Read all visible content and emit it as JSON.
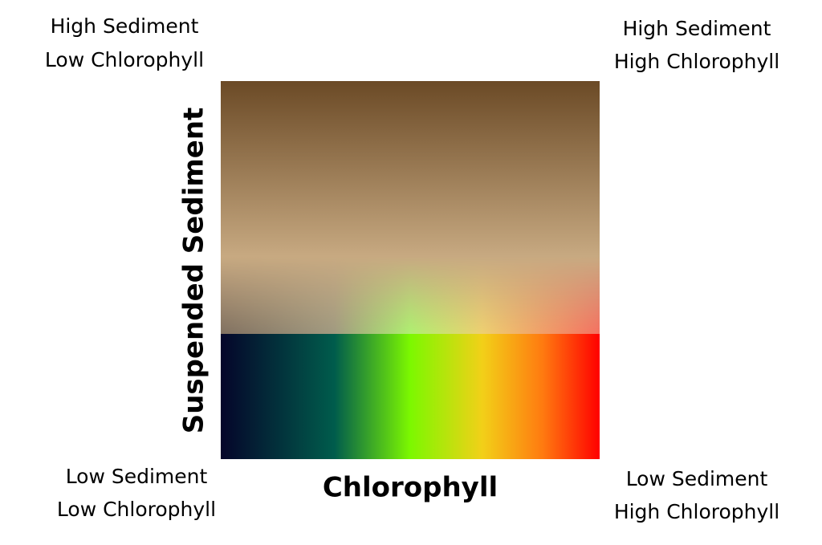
{
  "corners": {
    "top_left": [
      "High Sediment",
      "Low Chlorophyll"
    ],
    "top_right": [
      "High Sediment",
      "High Chlorophyll"
    ],
    "bottom_left": [
      "Low Sediment",
      "Low Chlorophyll"
    ],
    "bottom_right": [
      "Low Sediment",
      "High Chlorophyll"
    ]
  },
  "axes": {
    "x": "Chlorophyll",
    "y": "Suspended Sediment"
  }
}
